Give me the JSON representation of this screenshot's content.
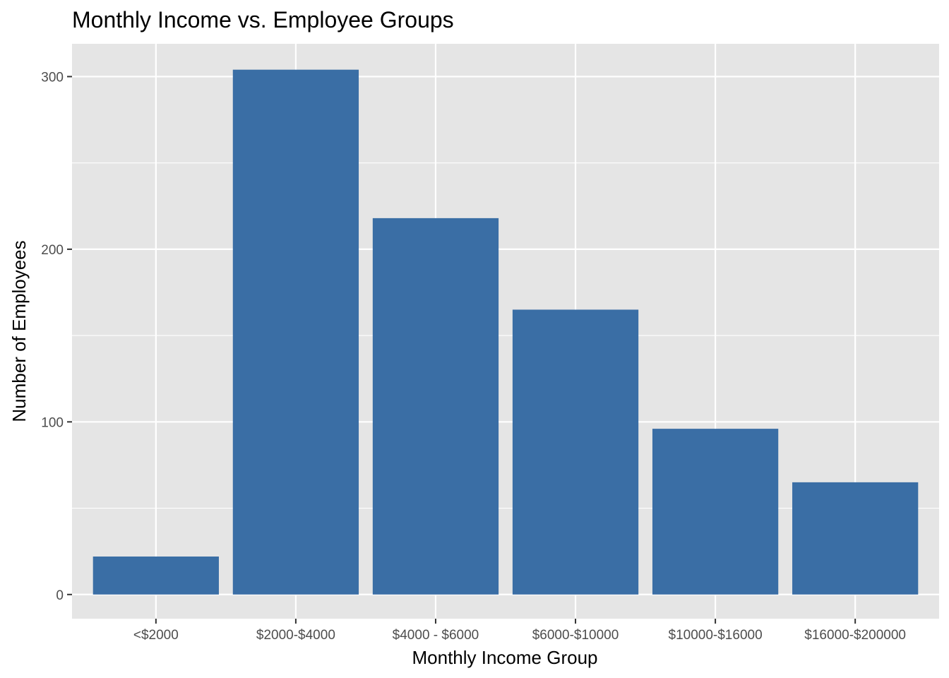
{
  "chart_data": {
    "type": "bar",
    "title": "Monthly Income vs. Employee Groups",
    "xlabel": "Monthly Income Group",
    "ylabel": "Number of Employees",
    "categories": [
      "<$2000",
      "$2000-$4000",
      "$4000 - $6000",
      "$6000-$10000",
      "$10000-$16000",
      "$16000-$200000"
    ],
    "values": [
      22,
      304,
      218,
      165,
      96,
      65
    ],
    "ylim": [
      -14,
      319
    ],
    "yticks": [
      0,
      100,
      200,
      300
    ],
    "grid": true,
    "colors": {
      "bar": "#3A6EA5",
      "panel": "#E5E5E5",
      "grid": "#FFFFFF"
    }
  }
}
